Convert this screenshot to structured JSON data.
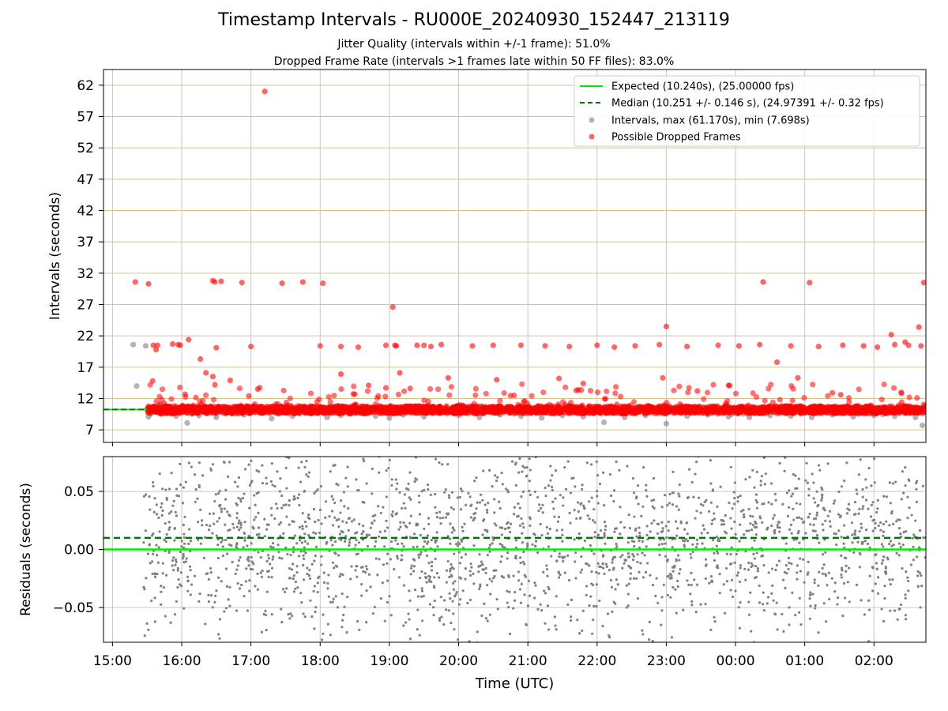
{
  "chart_data": [
    {
      "type": "scatter",
      "title": "Timestamp Intervals - RU000E_20240930_152447_213119",
      "subtitles": [
        "Jitter Quality (intervals within +/-1 frame): 51.0%",
        "Dropped Frame Rate (intervals >1 frames late within 50 FF files): 83.0%"
      ],
      "ylabel": "Intervals (seconds)",
      "xlabel": "",
      "x_unit": "hours since 15:00 UTC (2024-09-30)",
      "xlim": [
        -0.13,
        11.75
      ],
      "ylim": [
        5.0,
        64.5
      ],
      "yticks": [
        7,
        12,
        17,
        22,
        27,
        32,
        37,
        42,
        47,
        52,
        57,
        62
      ],
      "grid": true,
      "legend_position": "top-right",
      "legend": [
        "Expected (10.240s), (25.00000 fps)",
        "Median (10.251 +/- 0.146 s), (24.97391 +/- 0.32 fps)",
        "Intervals, max (61.170s), min (7.698s)",
        "Possible Dropped Frames"
      ],
      "expected_interval": 10.24,
      "median_interval": 10.251,
      "baseline_band": {
        "x_start": 0.5,
        "x_end": 11.75,
        "y_center": 10.24
      },
      "series": [
        {
          "name": "Possible Dropped Frames",
          "color": "#ff0000",
          "x": [
            2.2,
            1.57,
            1.87,
            2.45,
            2.75,
            3.04,
            0.65,
            0.87,
            0.98,
            0.33,
            0.52,
            0.59,
            4.05,
            4.08,
            4.1,
            4.5,
            4.75,
            0.95,
            1.5,
            2.0,
            3.0,
            3.3,
            3.55,
            3.95,
            4.4,
            4.6,
            5.2,
            5.5,
            5.9,
            6.25,
            6.6,
            7.0,
            7.25,
            7.55,
            7.9,
            8.3,
            8.75,
            9.05,
            9.35,
            9.8,
            10.2,
            10.55,
            10.85,
            11.05,
            11.3,
            11.5,
            11.68,
            0.58,
            0.63,
            1.1,
            1.27,
            1.35,
            1.45,
            1.48,
            1.7,
            1.97,
            2.1,
            3.3,
            3.5,
            3.7,
            3.95,
            4.15,
            4.3,
            4.85,
            5.55,
            5.8,
            6.45,
            6.7,
            6.8,
            7.95,
            8.2,
            8.45,
            8.9,
            9.6,
            9.9,
            10.4,
            10.52,
            11.25,
            11.45,
            11.65,
            11.72,
            8.0,
            9.4,
            10.07,
            1.45,
            1.48,
            1.05
          ],
          "y": [
            61.0,
            30.7,
            30.5,
            30.4,
            30.6,
            30.4,
            20.5,
            20.7,
            20.5,
            30.6,
            30.3,
            20.5,
            26.6,
            20.5,
            20.4,
            20.5,
            20.6,
            20.6,
            20.1,
            20.3,
            20.4,
            20.3,
            20.2,
            20.5,
            20.5,
            20.3,
            20.4,
            20.5,
            20.5,
            20.4,
            20.3,
            20.5,
            20.2,
            20.4,
            20.6,
            20.3,
            20.5,
            20.4,
            20.6,
            20.4,
            20.3,
            20.5,
            20.4,
            20.2,
            20.6,
            20.5,
            20.4,
            14.8,
            19.8,
            21.4,
            18.3,
            16.1,
            15.5,
            14.2,
            14.9,
            12.4,
            13.5,
            15.9,
            12.7,
            14.1,
            13.7,
            16.1,
            13.6,
            15.3,
            15.0,
            12.5,
            15.2,
            13.3,
            14.4,
            15.3,
            11.1,
            13.2,
            14.1,
            17.8,
            15.3,
            12.9,
            12.6,
            22.2,
            21.0,
            23.4,
            30.5,
            23.5,
            30.6,
            30.5,
            30.8,
            30.6,
            12.7
          ],
          "dense_band_x": [
            0.5,
            11.75
          ],
          "dense_band_y": [
            9.6,
            10.8
          ]
        },
        {
          "name": "Intervals, max (61.170s), min (7.698s)",
          "color": "#808080",
          "x": [
            0.3,
            0.35,
            0.48,
            0.52,
            0.7,
            0.92,
            1.08,
            1.25,
            1.5,
            1.9,
            2.3,
            2.6,
            2.9,
            3.1,
            3.3,
            3.8,
            4.0,
            4.2,
            4.5,
            5.0,
            5.3,
            5.6,
            5.9,
            6.2,
            6.5,
            6.8,
            7.1,
            7.4,
            7.7,
            8.0,
            8.3,
            8.6,
            8.9,
            9.2,
            9.5,
            9.8,
            10.1,
            10.4,
            10.7,
            11.0,
            11.3,
            11.6,
            11.7
          ],
          "y": [
            20.6,
            14.0,
            20.4,
            9.1,
            9.5,
            9.2,
            8.1,
            9.3,
            9.0,
            9.4,
            8.8,
            9.2,
            9.6,
            9.0,
            9.3,
            9.2,
            8.9,
            9.4,
            9.1,
            9.3,
            9.0,
            9.4,
            9.2,
            8.9,
            9.3,
            9.1,
            8.2,
            9.0,
            9.3,
            8.0,
            9.2,
            9.4,
            9.1,
            9.0,
            9.3,
            9.2,
            9.0,
            9.4,
            9.1,
            9.3,
            9.2,
            9.0,
            7.7
          ]
        }
      ]
    },
    {
      "type": "scatter",
      "ylabel": "Residuals (seconds)",
      "xlabel": "Time (UTC)",
      "xticks": [
        "15:00",
        "16:00",
        "17:00",
        "18:00",
        "19:00",
        "20:00",
        "21:00",
        "22:00",
        "23:00",
        "00:00",
        "01:00",
        "02:00"
      ],
      "xlim": [
        -0.13,
        11.75
      ],
      "ylim": [
        -0.08,
        0.08
      ],
      "yticks": [
        0.05,
        0.0,
        -0.05
      ],
      "ytick_labels": [
        "0.05",
        "0.00",
        "−0.05"
      ],
      "grid": true,
      "expected_residual": 0.0,
      "median_residual": 0.01,
      "series": [
        {
          "name": "Residuals",
          "color": "#808080",
          "x_range": [
            0.45,
            11.75
          ],
          "y_range": [
            -0.08,
            0.08
          ]
        }
      ]
    }
  ],
  "colors": {
    "expected": "#00ee00",
    "median": "#007700",
    "hgrid_top": "#d9c089",
    "grid": "#c8c8c8",
    "dropped": "#ff0000",
    "interval": "#808080"
  }
}
